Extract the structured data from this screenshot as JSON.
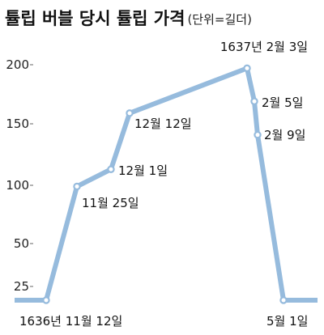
{
  "chart_data": {
    "type": "line",
    "title": "튤립 버블 당시 튤립 가격",
    "unit_note": "(단위=길더)",
    "xlabel": "",
    "ylabel": "",
    "ylim": [
      15,
      215
    ],
    "yticks": [
      25,
      50,
      100,
      150,
      200
    ],
    "grid": false,
    "line_color": "#96bbdd",
    "point_fill": "#ffffff",
    "series": [
      {
        "points": [
          {
            "label": "1636년 11월 12일",
            "value": 20
          },
          {
            "label": "11월 25일",
            "value": 99
          },
          {
            "label": "12월 1일",
            "value": 113
          },
          {
            "label": "12월 12일",
            "value": 159
          },
          {
            "label": "1637년 2월 3일",
            "value": 197
          },
          {
            "label": "2월 5일",
            "value": 169
          },
          {
            "label": "2월 9일",
            "value": 141
          },
          {
            "label": "5월 1일",
            "value": 20
          }
        ]
      }
    ]
  }
}
